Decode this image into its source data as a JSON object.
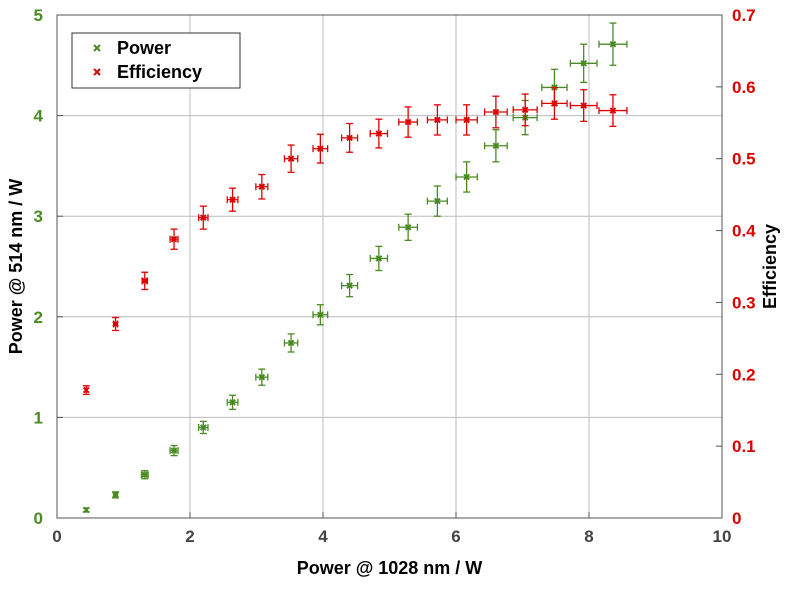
{
  "colors": {
    "power": "#4a8a23",
    "efficiency": "#dd0000",
    "grid": "#bcbcbc",
    "frame": "#555555"
  },
  "chart_data": {
    "type": "scatter",
    "xlabel": "Power @ 1028 nm / W",
    "ylabel": "Power @ 514 nm / W",
    "y2label": "Efficiency",
    "xlim": [
      0,
      10
    ],
    "ylim": [
      0,
      5
    ],
    "y2lim": [
      0,
      0.7
    ],
    "x_ticks": [
      "0",
      "2",
      "4",
      "6",
      "8",
      "10"
    ],
    "y_ticks": [
      "0",
      "1",
      "2",
      "3",
      "4",
      "5"
    ],
    "y2_ticks": [
      "0",
      "0.1",
      "0.2",
      "0.3",
      "0.4",
      "0.5",
      "0.6",
      "0.7"
    ],
    "grid": true,
    "legend": {
      "placement": "top-left",
      "entries": [
        "Power",
        "Efficiency"
      ]
    },
    "series": [
      {
        "name": "Power",
        "axis": "left",
        "marker": "x",
        "points": [
          {
            "x": 0.44,
            "y": 0.08,
            "xerr": 0.0,
            "yerr": 0.02
          },
          {
            "x": 0.88,
            "y": 0.23,
            "xerr": 0.03,
            "yerr": 0.03
          },
          {
            "x": 1.32,
            "y": 0.43,
            "xerr": 0.05,
            "yerr": 0.04
          },
          {
            "x": 1.76,
            "y": 0.67,
            "xerr": 0.06,
            "yerr": 0.05
          },
          {
            "x": 2.2,
            "y": 0.9,
            "xerr": 0.07,
            "yerr": 0.06
          },
          {
            "x": 2.64,
            "y": 1.15,
            "xerr": 0.08,
            "yerr": 0.07
          },
          {
            "x": 3.08,
            "y": 1.4,
            "xerr": 0.09,
            "yerr": 0.08
          },
          {
            "x": 3.52,
            "y": 1.74,
            "xerr": 0.1,
            "yerr": 0.09
          },
          {
            "x": 3.96,
            "y": 2.02,
            "xerr": 0.11,
            "yerr": 0.1
          },
          {
            "x": 4.4,
            "y": 2.31,
            "xerr": 0.12,
            "yerr": 0.11
          },
          {
            "x": 4.84,
            "y": 2.58,
            "xerr": 0.13,
            "yerr": 0.12
          },
          {
            "x": 5.28,
            "y": 2.89,
            "xerr": 0.14,
            "yerr": 0.13
          },
          {
            "x": 5.72,
            "y": 3.15,
            "xerr": 0.15,
            "yerr": 0.15
          },
          {
            "x": 6.16,
            "y": 3.39,
            "xerr": 0.16,
            "yerr": 0.15
          },
          {
            "x": 6.6,
            "y": 3.7,
            "xerr": 0.17,
            "yerr": 0.16
          },
          {
            "x": 7.04,
            "y": 3.98,
            "xerr": 0.18,
            "yerr": 0.17
          },
          {
            "x": 7.48,
            "y": 4.28,
            "xerr": 0.19,
            "yerr": 0.18
          },
          {
            "x": 7.92,
            "y": 4.52,
            "xerr": 0.2,
            "yerr": 0.19
          },
          {
            "x": 8.36,
            "y": 4.71,
            "xerr": 0.21,
            "yerr": 0.21
          }
        ]
      },
      {
        "name": "Efficiency",
        "axis": "right",
        "marker": "x",
        "points": [
          {
            "x": 0.44,
            "y": 0.178,
            "xerr": 0.0,
            "yerr": 0.006
          },
          {
            "x": 0.88,
            "y": 0.27,
            "xerr": 0.03,
            "yerr": 0.009
          },
          {
            "x": 1.32,
            "y": 0.33,
            "xerr": 0.04,
            "yerr": 0.012
          },
          {
            "x": 1.76,
            "y": 0.388,
            "xerr": 0.06,
            "yerr": 0.014
          },
          {
            "x": 2.2,
            "y": 0.418,
            "xerr": 0.07,
            "yerr": 0.016
          },
          {
            "x": 2.64,
            "y": 0.443,
            "xerr": 0.08,
            "yerr": 0.016
          },
          {
            "x": 3.08,
            "y": 0.461,
            "xerr": 0.09,
            "yerr": 0.017
          },
          {
            "x": 3.52,
            "y": 0.5,
            "xerr": 0.1,
            "yerr": 0.019
          },
          {
            "x": 3.96,
            "y": 0.514,
            "xerr": 0.11,
            "yerr": 0.02
          },
          {
            "x": 4.4,
            "y": 0.529,
            "xerr": 0.12,
            "yerr": 0.02
          },
          {
            "x": 4.84,
            "y": 0.535,
            "xerr": 0.13,
            "yerr": 0.02
          },
          {
            "x": 5.28,
            "y": 0.551,
            "xerr": 0.14,
            "yerr": 0.021
          },
          {
            "x": 5.72,
            "y": 0.554,
            "xerr": 0.15,
            "yerr": 0.021
          },
          {
            "x": 6.16,
            "y": 0.554,
            "xerr": 0.16,
            "yerr": 0.021
          },
          {
            "x": 6.6,
            "y": 0.565,
            "xerr": 0.17,
            "yerr": 0.022
          },
          {
            "x": 7.04,
            "y": 0.568,
            "xerr": 0.18,
            "yerr": 0.022
          },
          {
            "x": 7.48,
            "y": 0.577,
            "xerr": 0.19,
            "yerr": 0.022
          },
          {
            "x": 7.92,
            "y": 0.574,
            "xerr": 0.2,
            "yerr": 0.022
          },
          {
            "x": 8.36,
            "y": 0.567,
            "xerr": 0.21,
            "yerr": 0.022
          }
        ]
      }
    ]
  }
}
